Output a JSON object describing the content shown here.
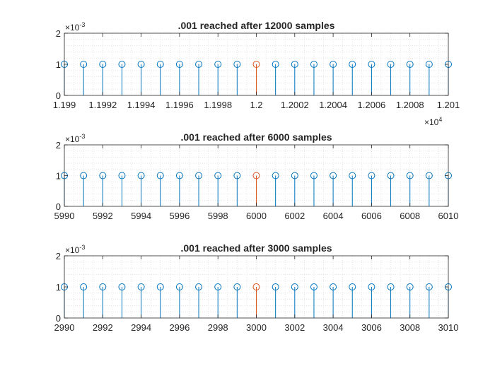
{
  "chart_data": [
    {
      "type": "stem",
      "title": ".001 reached after 12000 samples",
      "xlabel": "",
      "ylabel": "",
      "x": [
        11990,
        11991,
        11992,
        11993,
        11994,
        11995,
        11996,
        11997,
        11998,
        11999,
        12000,
        12001,
        12002,
        12003,
        12004,
        12005,
        12006,
        12007,
        12008,
        12009,
        12010
      ],
      "y": [
        0.001,
        0.001,
        0.001,
        0.001,
        0.001,
        0.001,
        0.001,
        0.001,
        0.001,
        0.001,
        0.001,
        0.001,
        0.001,
        0.001,
        0.001,
        0.001,
        0.001,
        0.001,
        0.001,
        0.001,
        0.001
      ],
      "highlight_x": 12000,
      "xlim": [
        11990,
        12010
      ],
      "ylim": [
        0,
        0.002
      ],
      "xticks": [
        11990,
        11992,
        11994,
        11996,
        11998,
        12000,
        12002,
        12004,
        12006,
        12008,
        12010
      ],
      "xtick_labels": [
        "1.199",
        "1.1992",
        "1.1994",
        "1.1996",
        "1.1998",
        "1.2",
        "1.2002",
        "1.2004",
        "1.2006",
        "1.2008",
        "1.201"
      ],
      "x_exponent": "4",
      "yticks": [
        0,
        0.001,
        0.002
      ],
      "ytick_labels": [
        "0",
        "1",
        "2"
      ],
      "y_exponent": "-3",
      "grid": "minor",
      "legend": "none"
    },
    {
      "type": "stem",
      "title": ".001 reached after 6000 samples",
      "xlabel": "",
      "ylabel": "",
      "x": [
        5990,
        5991,
        5992,
        5993,
        5994,
        5995,
        5996,
        5997,
        5998,
        5999,
        6000,
        6001,
        6002,
        6003,
        6004,
        6005,
        6006,
        6007,
        6008,
        6009,
        6010
      ],
      "y": [
        0.001,
        0.001,
        0.001,
        0.001,
        0.001,
        0.001,
        0.001,
        0.001,
        0.001,
        0.001,
        0.001,
        0.001,
        0.001,
        0.001,
        0.001,
        0.001,
        0.001,
        0.001,
        0.001,
        0.001,
        0.001
      ],
      "highlight_x": 6000,
      "xlim": [
        5990,
        6010
      ],
      "ylim": [
        0,
        0.002
      ],
      "xticks": [
        5990,
        5992,
        5994,
        5996,
        5998,
        6000,
        6002,
        6004,
        6006,
        6008,
        6010
      ],
      "xtick_labels": [
        "5990",
        "5992",
        "5994",
        "5996",
        "5998",
        "6000",
        "6002",
        "6004",
        "6006",
        "6008",
        "6010"
      ],
      "x_exponent": "",
      "yticks": [
        0,
        0.001,
        0.002
      ],
      "ytick_labels": [
        "0",
        "1",
        "2"
      ],
      "y_exponent": "-3",
      "grid": "minor",
      "legend": "none"
    },
    {
      "type": "stem",
      "title": ".001 reached after 3000 samples",
      "xlabel": "",
      "ylabel": "",
      "x": [
        2990,
        2991,
        2992,
        2993,
        2994,
        2995,
        2996,
        2997,
        2998,
        2999,
        3000,
        3001,
        3002,
        3003,
        3004,
        3005,
        3006,
        3007,
        3008,
        3009,
        3010
      ],
      "y": [
        0.001,
        0.001,
        0.001,
        0.001,
        0.001,
        0.001,
        0.001,
        0.001,
        0.001,
        0.001,
        0.001,
        0.001,
        0.001,
        0.001,
        0.001,
        0.001,
        0.001,
        0.001,
        0.001,
        0.001,
        0.001
      ],
      "highlight_x": 3000,
      "xlim": [
        2990,
        3010
      ],
      "ylim": [
        0,
        0.002
      ],
      "xticks": [
        2990,
        2992,
        2994,
        2996,
        2998,
        3000,
        3002,
        3004,
        3006,
        3008,
        3010
      ],
      "xtick_labels": [
        "2990",
        "2992",
        "2994",
        "2996",
        "2998",
        "3000",
        "3002",
        "3004",
        "3006",
        "3008",
        "3010"
      ],
      "x_exponent": "",
      "yticks": [
        0,
        0.001,
        0.002
      ],
      "ytick_labels": [
        "0",
        "1",
        "2"
      ],
      "y_exponent": "-3",
      "grid": "minor",
      "legend": "none"
    }
  ],
  "colors": {
    "stem": "#0072BD",
    "highlight": "#D95319",
    "axis": "#262626",
    "grid": "#d6d6d6"
  }
}
